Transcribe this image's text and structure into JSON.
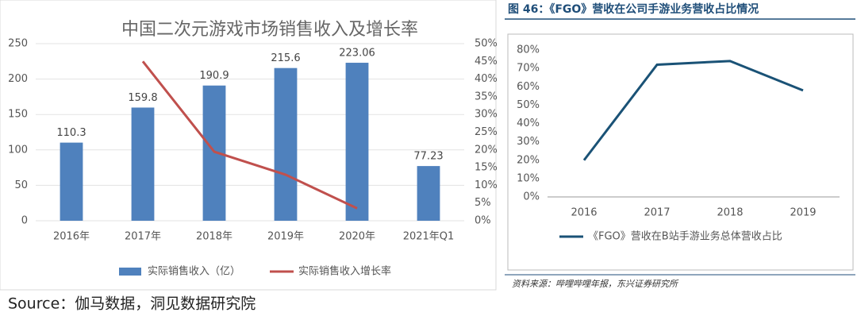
{
  "chart_data": [
    {
      "type": "bar",
      "title": "中国二次元游戏市场销售收入及增长率",
      "categories": [
        "2016年",
        "2017年",
        "2018年",
        "2019年",
        "2020年",
        "2021年Q1"
      ],
      "series": [
        {
          "name": "实际销售收入（亿）",
          "color": "#4f81bd",
          "type": "bar",
          "values": [
            110.3,
            159.8,
            190.9,
            215.6,
            223.06,
            77.23
          ]
        },
        {
          "name": "实际销售收入增长率",
          "color": "#c0504d",
          "type": "line",
          "axis": "y2",
          "values": [
            null,
            45,
            19.5,
            13,
            3.5,
            null
          ]
        }
      ],
      "ylim": [
        0,
        250
      ],
      "yticks": [
        0,
        50,
        100,
        150,
        200,
        250
      ],
      "y2lim": [
        0,
        50
      ],
      "y2ticks": [
        {
          "value": 0,
          "label": "0%"
        },
        {
          "value": 5,
          "label": "5%"
        },
        {
          "value": 10,
          "label": "10%"
        },
        {
          "value": 15,
          "label": "15%"
        },
        {
          "value": 20,
          "label": "20%"
        },
        {
          "value": 25,
          "label": "25%"
        },
        {
          "value": 30,
          "label": "30%"
        },
        {
          "value": 35,
          "label": "35%"
        },
        {
          "value": 40,
          "label": "40%"
        },
        {
          "value": 45,
          "label": "45%"
        },
        {
          "value": 50,
          "label": "50%"
        }
      ],
      "grid": true,
      "data_labels": true
    },
    {
      "type": "line",
      "title": "图 46：《FGO》营收在公司手游业务营收占比情况",
      "categories": [
        "2016",
        "2017",
        "2018",
        "2019"
      ],
      "series": [
        {
          "name": "《FGO》营收在B站手游业务总体营收占比",
          "color": "#1a5276",
          "values": [
            20,
            72,
            74,
            58
          ]
        }
      ],
      "ylim": [
        0,
        80
      ],
      "yticks": [
        {
          "value": 0,
          "label": "0%"
        },
        {
          "value": 10,
          "label": "10%"
        },
        {
          "value": 20,
          "label": "20%"
        },
        {
          "value": 30,
          "label": "30%"
        },
        {
          "value": 40,
          "label": "40%"
        },
        {
          "value": 50,
          "label": "50%"
        },
        {
          "value": 60,
          "label": "60%"
        },
        {
          "value": 70,
          "label": "70%"
        },
        {
          "value": 80,
          "label": "80%"
        }
      ],
      "grid": false,
      "source": "资料来源：哔哩哔哩年报，东兴证券研究所"
    }
  ],
  "source": "Source：伽马数据，洞见数据研究院"
}
